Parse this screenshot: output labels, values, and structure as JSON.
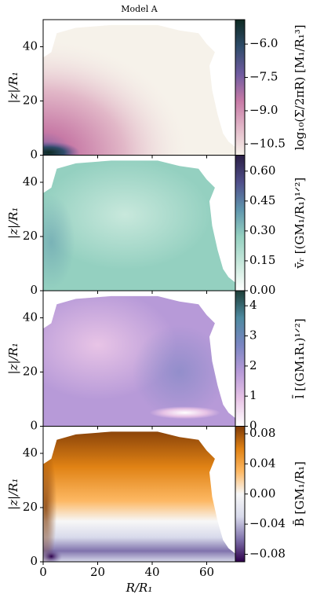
{
  "chart_data": [
    {
      "type": "heatmap",
      "title": "Model A",
      "ylabel": "|z|/R₁",
      "xlim": [
        0,
        70.5
      ],
      "ylim": [
        0,
        50
      ],
      "yticks": [
        0,
        20,
        40
      ],
      "colorbar_label": "log₁₀(Σ/2πR)  [M₁/R₁³]",
      "clim": [
        -11.0,
        -4.9
      ],
      "cticks": [
        {
          "value": -10.5,
          "label": "−10.5"
        },
        {
          "value": -9.0,
          "label": "−9.0"
        },
        {
          "value": -7.5,
          "label": "−7.5"
        },
        {
          "value": -6.0,
          "label": "−6.0"
        }
      ],
      "colormap": [
        "#f6f2ea",
        "#e2b8c8",
        "#c77aa6",
        "#6f5ba0",
        "#2f4c6a",
        "#0e2a22"
      ]
    },
    {
      "type": "heatmap",
      "ylabel": "|z|/R₁",
      "xlim": [
        0,
        70.5
      ],
      "ylim": [
        0,
        50
      ],
      "yticks": [
        0,
        20,
        40
      ],
      "colorbar_label": "v̄ᵣ  [(GM₁/R₁)¹ᐟ²]",
      "clim": [
        0,
        0.68
      ],
      "cticks": [
        {
          "value": 0,
          "label": "0.00"
        },
        {
          "value": 0.15,
          "label": "0.15"
        },
        {
          "value": 0.3,
          "label": "0.30"
        },
        {
          "value": 0.45,
          "label": "0.45"
        },
        {
          "value": 0.6,
          "label": "0.60"
        }
      ],
      "colormap": [
        "#ffffff",
        "#c8e8dc",
        "#94d0c0",
        "#5f95ad",
        "#504f8a",
        "#2b1f45"
      ]
    },
    {
      "type": "heatmap",
      "ylabel": "|z|/R₁",
      "xlim": [
        0,
        70.5
      ],
      "ylim": [
        0,
        50
      ],
      "yticks": [
        0,
        20,
        40
      ],
      "colorbar_label": "l̄  [(GM₁R₁)¹ᐟ²]",
      "clim": [
        0,
        4.5
      ],
      "cticks": [
        0,
        1,
        2,
        3,
        4
      ],
      "colormap": [
        "#ffffff",
        "#e8c4e6",
        "#b79ad8",
        "#7a86c2",
        "#4e8aa0",
        "#1e3f38"
      ]
    },
    {
      "type": "heatmap",
      "ylabel": "|z|/R₁",
      "xlabel": "R/R₁",
      "xlim": [
        0,
        70.5
      ],
      "ylim": [
        0,
        50
      ],
      "yticks": [
        0,
        20,
        40
      ],
      "xticks": [
        0,
        20,
        40,
        60
      ],
      "colorbar_label": "B̄  [GM₁/R₁]",
      "clim": [
        -0.09,
        0.09
      ],
      "cticks": [
        {
          "value": -0.08,
          "label": "−0.08"
        },
        {
          "value": -0.04,
          "label": "−0.04"
        },
        {
          "value": 0.0,
          "label": "0.00"
        },
        {
          "value": 0.04,
          "label": "0.04"
        },
        {
          "value": 0.08,
          "label": "0.08"
        }
      ],
      "colormap": [
        "#2d004b",
        "#8073ac",
        "#d8daeb",
        "#f7f7f7",
        "#fdb863",
        "#e08214",
        "#7f3b08"
      ]
    }
  ]
}
